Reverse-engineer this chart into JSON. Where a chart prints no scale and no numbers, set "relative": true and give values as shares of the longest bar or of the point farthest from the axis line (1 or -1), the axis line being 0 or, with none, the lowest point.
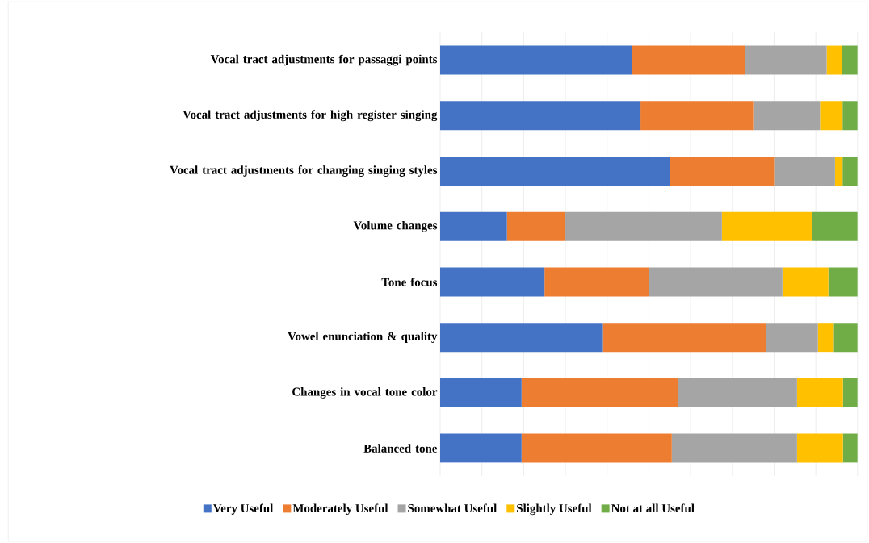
{
  "chart_data": {
    "type": "bar",
    "orientation": "horizontal",
    "stacked": true,
    "relative": true,
    "grid": "x",
    "legend": "bottom",
    "tick_labels": "y",
    "categories": [
      "Vocal tract adjustments for passaggi points",
      "Vocal tract adjustments for high register singing",
      "Vocal tract adjustments for changing singing styles",
      "Volume changes",
      "Tone focus",
      "Vowel enunciation & quality",
      "Changes in vocal tone color",
      "Balanced tone"
    ],
    "series": [
      {
        "name": "Very Useful",
        "color": "#4472c4",
        "values": [
          0.46,
          0.48,
          0.55,
          0.16,
          0.25,
          0.39,
          0.195,
          0.195
        ]
      },
      {
        "name": "Moderately Useful",
        "color": "#ed7d31",
        "values": [
          0.27,
          0.27,
          0.25,
          0.14,
          0.25,
          0.39,
          0.375,
          0.36
        ]
      },
      {
        "name": "Somewhat Useful",
        "color": "#a5a5a5",
        "values": [
          0.196,
          0.16,
          0.146,
          0.375,
          0.32,
          0.125,
          0.285,
          0.3
        ]
      },
      {
        "name": "Slightly Useful",
        "color": "#ffc000",
        "values": [
          0.037,
          0.054,
          0.018,
          0.215,
          0.11,
          0.038,
          0.11,
          0.11
        ]
      },
      {
        "name": "Not at all Useful",
        "color": "#70ad47",
        "values": [
          0.037,
          0.036,
          0.036,
          0.11,
          0.07,
          0.057,
          0.035,
          0.035
        ]
      }
    ]
  }
}
